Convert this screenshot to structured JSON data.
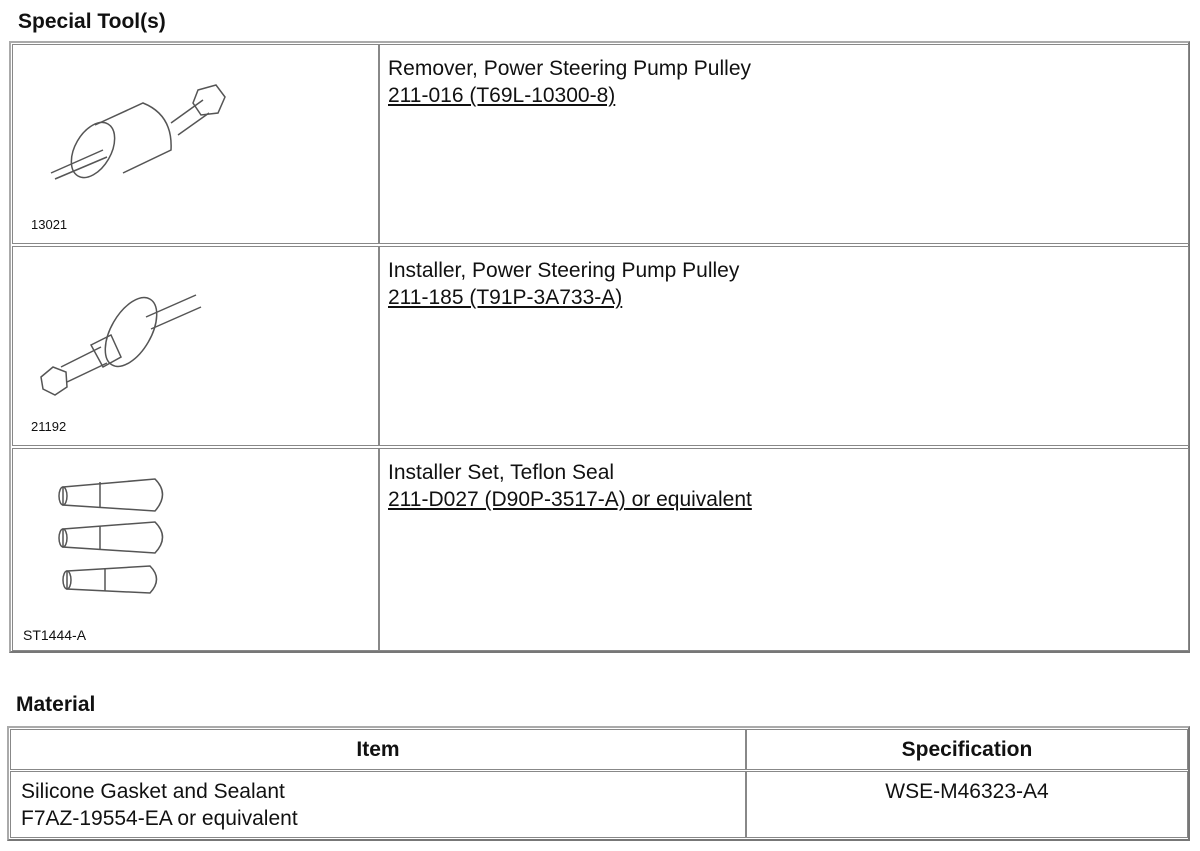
{
  "special_tools": {
    "title": "Special Tool(s)",
    "rows": [
      {
        "image_code": "13021",
        "name": "Remover, Power Steering Pump Pulley",
        "part_number": "211-016 (T69L-10300-8)",
        "suffix": ""
      },
      {
        "image_code": "21192",
        "name": "Installer, Power Steering Pump Pulley",
        "part_number": "211-185 (T91P-3A733-A)",
        "suffix": ""
      },
      {
        "image_code": "ST1444-A",
        "name": "Installer Set, Teflon Seal",
        "part_number": "211-D027 (D90P-3517-A)",
        "suffix": " or equivalent"
      }
    ]
  },
  "material": {
    "title": "Material",
    "headers": {
      "item": "Item",
      "specification": "Specification"
    },
    "rows": [
      {
        "item_line1": "Silicone Gasket and Sealant",
        "item_line2": "F7AZ-19554-EA or equivalent",
        "specification": "WSE-M46323-A4"
      }
    ]
  }
}
